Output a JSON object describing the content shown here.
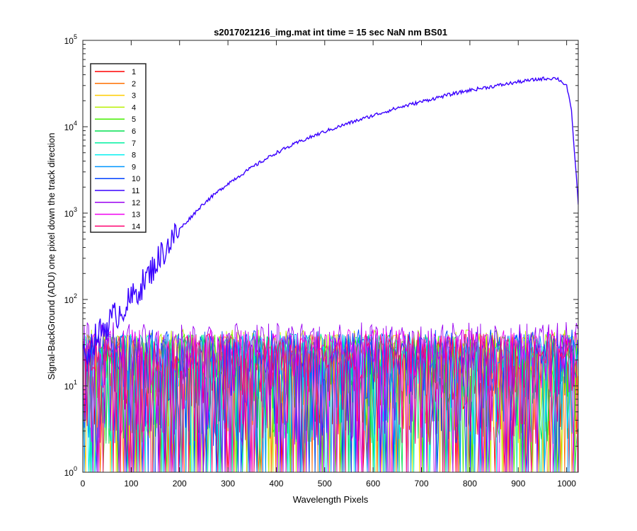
{
  "chart_data": {
    "type": "line",
    "title": "s2017021216_img.mat int time = 15 sec  NaN nm BS01",
    "xlabel": "Wavelength Pixels",
    "ylabel": "Signal-BackGround (ADU) one pixel down the track direction",
    "xlim": [
      0,
      1024
    ],
    "ylim": [
      1,
      100000
    ],
    "yscale": "log",
    "x_ticks": [
      "0",
      "100",
      "200",
      "300",
      "400",
      "500",
      "600",
      "700",
      "800",
      "900",
      "1000"
    ],
    "x_tick_values": [
      0,
      100,
      200,
      300,
      400,
      500,
      600,
      700,
      800,
      900,
      1000
    ],
    "y_tick_exponents": [
      "0",
      "1",
      "2",
      "3",
      "4",
      "5"
    ],
    "y_tick_values": [
      1,
      10,
      100,
      1000,
      10000,
      100000
    ],
    "legend_position": "top-left",
    "grid": false,
    "series": [
      {
        "name": "1",
        "color": "#ff0000",
        "kind": "noise",
        "peak": 30
      },
      {
        "name": "2",
        "color": "#ff7000",
        "kind": "noise",
        "peak": 35
      },
      {
        "name": "3",
        "color": "#ffcc00",
        "kind": "noise",
        "peak": 40
      },
      {
        "name": "4",
        "color": "#b8f000",
        "kind": "noise",
        "peak": 45
      },
      {
        "name": "5",
        "color": "#44ee00",
        "kind": "noise",
        "peak": 40
      },
      {
        "name": "6",
        "color": "#00e050",
        "kind": "noise",
        "peak": 38
      },
      {
        "name": "7",
        "color": "#00f0a0",
        "kind": "noise",
        "peak": 40
      },
      {
        "name": "8",
        "color": "#00f0f0",
        "kind": "noise",
        "peak": 40
      },
      {
        "name": "9",
        "color": "#0096ff",
        "kind": "noise",
        "peak": 40
      },
      {
        "name": "10",
        "color": "#0040ff",
        "kind": "noise",
        "peak": 45
      },
      {
        "name": "11",
        "color": "#3a00ff",
        "kind": "signal",
        "x": [
          0,
          10,
          25,
          40,
          60,
          80,
          100,
          130,
          160,
          200,
          250,
          300,
          350,
          400,
          450,
          500,
          550,
          600,
          650,
          700,
          750,
          800,
          850,
          900,
          950,
          980,
          1000,
          1010,
          1024
        ],
        "y": [
          20,
          25,
          35,
          45,
          60,
          75,
          100,
          170,
          320,
          650,
          1300,
          2200,
          3400,
          5000,
          6800,
          8800,
          11000,
          13500,
          16500,
          19500,
          23000,
          26500,
          29500,
          33000,
          36000,
          36500,
          30000,
          15000,
          1300
        ]
      },
      {
        "name": "12",
        "color": "#9a00f0",
        "kind": "noise",
        "peak": 55
      },
      {
        "name": "13",
        "color": "#f000f0",
        "kind": "noise",
        "peak": 45
      },
      {
        "name": "14",
        "color": "#ff0070",
        "kind": "noise",
        "peak": 40
      }
    ]
  }
}
